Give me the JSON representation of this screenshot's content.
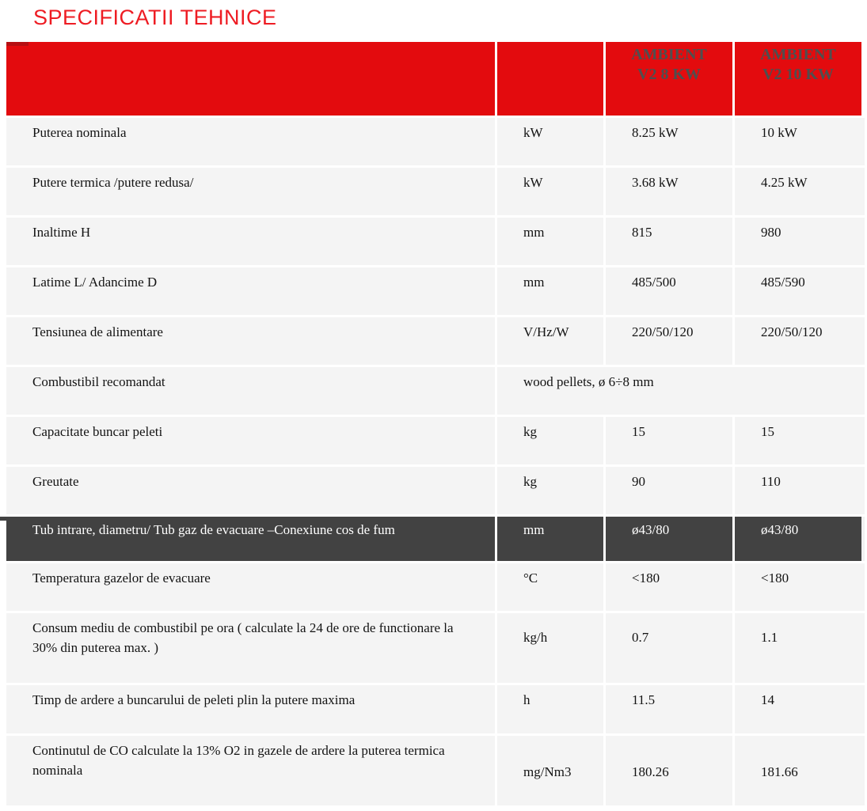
{
  "page": {
    "title": "SPECIFICATII TEHNICE"
  },
  "colors": {
    "accent_red_title": "#ee1c23",
    "header_band_red": "#e30b0e",
    "header_text_gray": "#4f4f4f",
    "dark_row_bg": "#424242",
    "row_bg": "#f4f4f4"
  },
  "table": {
    "header": {
      "param_label": "",
      "unit_label": "",
      "product_a": {
        "line1": "AMBIENT",
        "line2": "V2 8 KW"
      },
      "product_b": {
        "line1": "AMBIENT",
        "line2": "V2 10 KW"
      }
    },
    "rows": [
      {
        "param": "Puterea nominala",
        "unit": "kW",
        "v8": "8.25 kW",
        "v10": "10 kW"
      },
      {
        "param": "Putere termica /putere redusa/",
        "unit": "kW",
        "v8": "3.68 kW",
        "v10": "4.25 kW"
      },
      {
        "param": "Inaltime H",
        "unit": "mm",
        "v8": "815",
        "v10": "980"
      },
      {
        "param": "Latime L/ Adancime D",
        "unit": "mm",
        "v8": "485/500",
        "v10": "485/590"
      },
      {
        "param": "Tensiunea de alimentare",
        "unit": "V/Hz/W",
        "v8": "220/50/120",
        "v10": "220/50/120"
      },
      {
        "param": "Combustibil recomandat",
        "merged": "wood pellets, ø 6÷8 mm"
      },
      {
        "param": "Capacitate buncar peleti",
        "unit": "kg",
        "v8": "15",
        "v10": "15"
      },
      {
        "param": "Greutate",
        "unit": "kg",
        "v8": "90",
        "v10": "110"
      },
      {
        "param": "Tub intrare, diametru/ Tub gaz de evacuare –Conexiune cos de fum",
        "unit": "mm",
        "v8": "ø43/80",
        "v10": "ø43/80"
      },
      {
        "param": "Temperatura gazelor de evacuare",
        "unit": "°C",
        "v8": "<180",
        "v10": "<180"
      },
      {
        "param": "Consum mediu de combustibil pe ora ( calculate la 24 de ore de functionare la 30% din puterea max. )",
        "unit": "kg/h",
        "v8": "0.7",
        "v10": "1.1"
      },
      {
        "param": "Timp de ardere a buncarului de peleti plin la putere maxima",
        "unit": "h",
        "v8": "11.5",
        "v10": "14"
      },
      {
        "param": "Continutul de CO calculate la 13% O2 in gazele de ardere la puterea termica nominala",
        "unit": "mg/Nm3",
        "v8": "180.26",
        "v10": "181.66"
      }
    ]
  }
}
